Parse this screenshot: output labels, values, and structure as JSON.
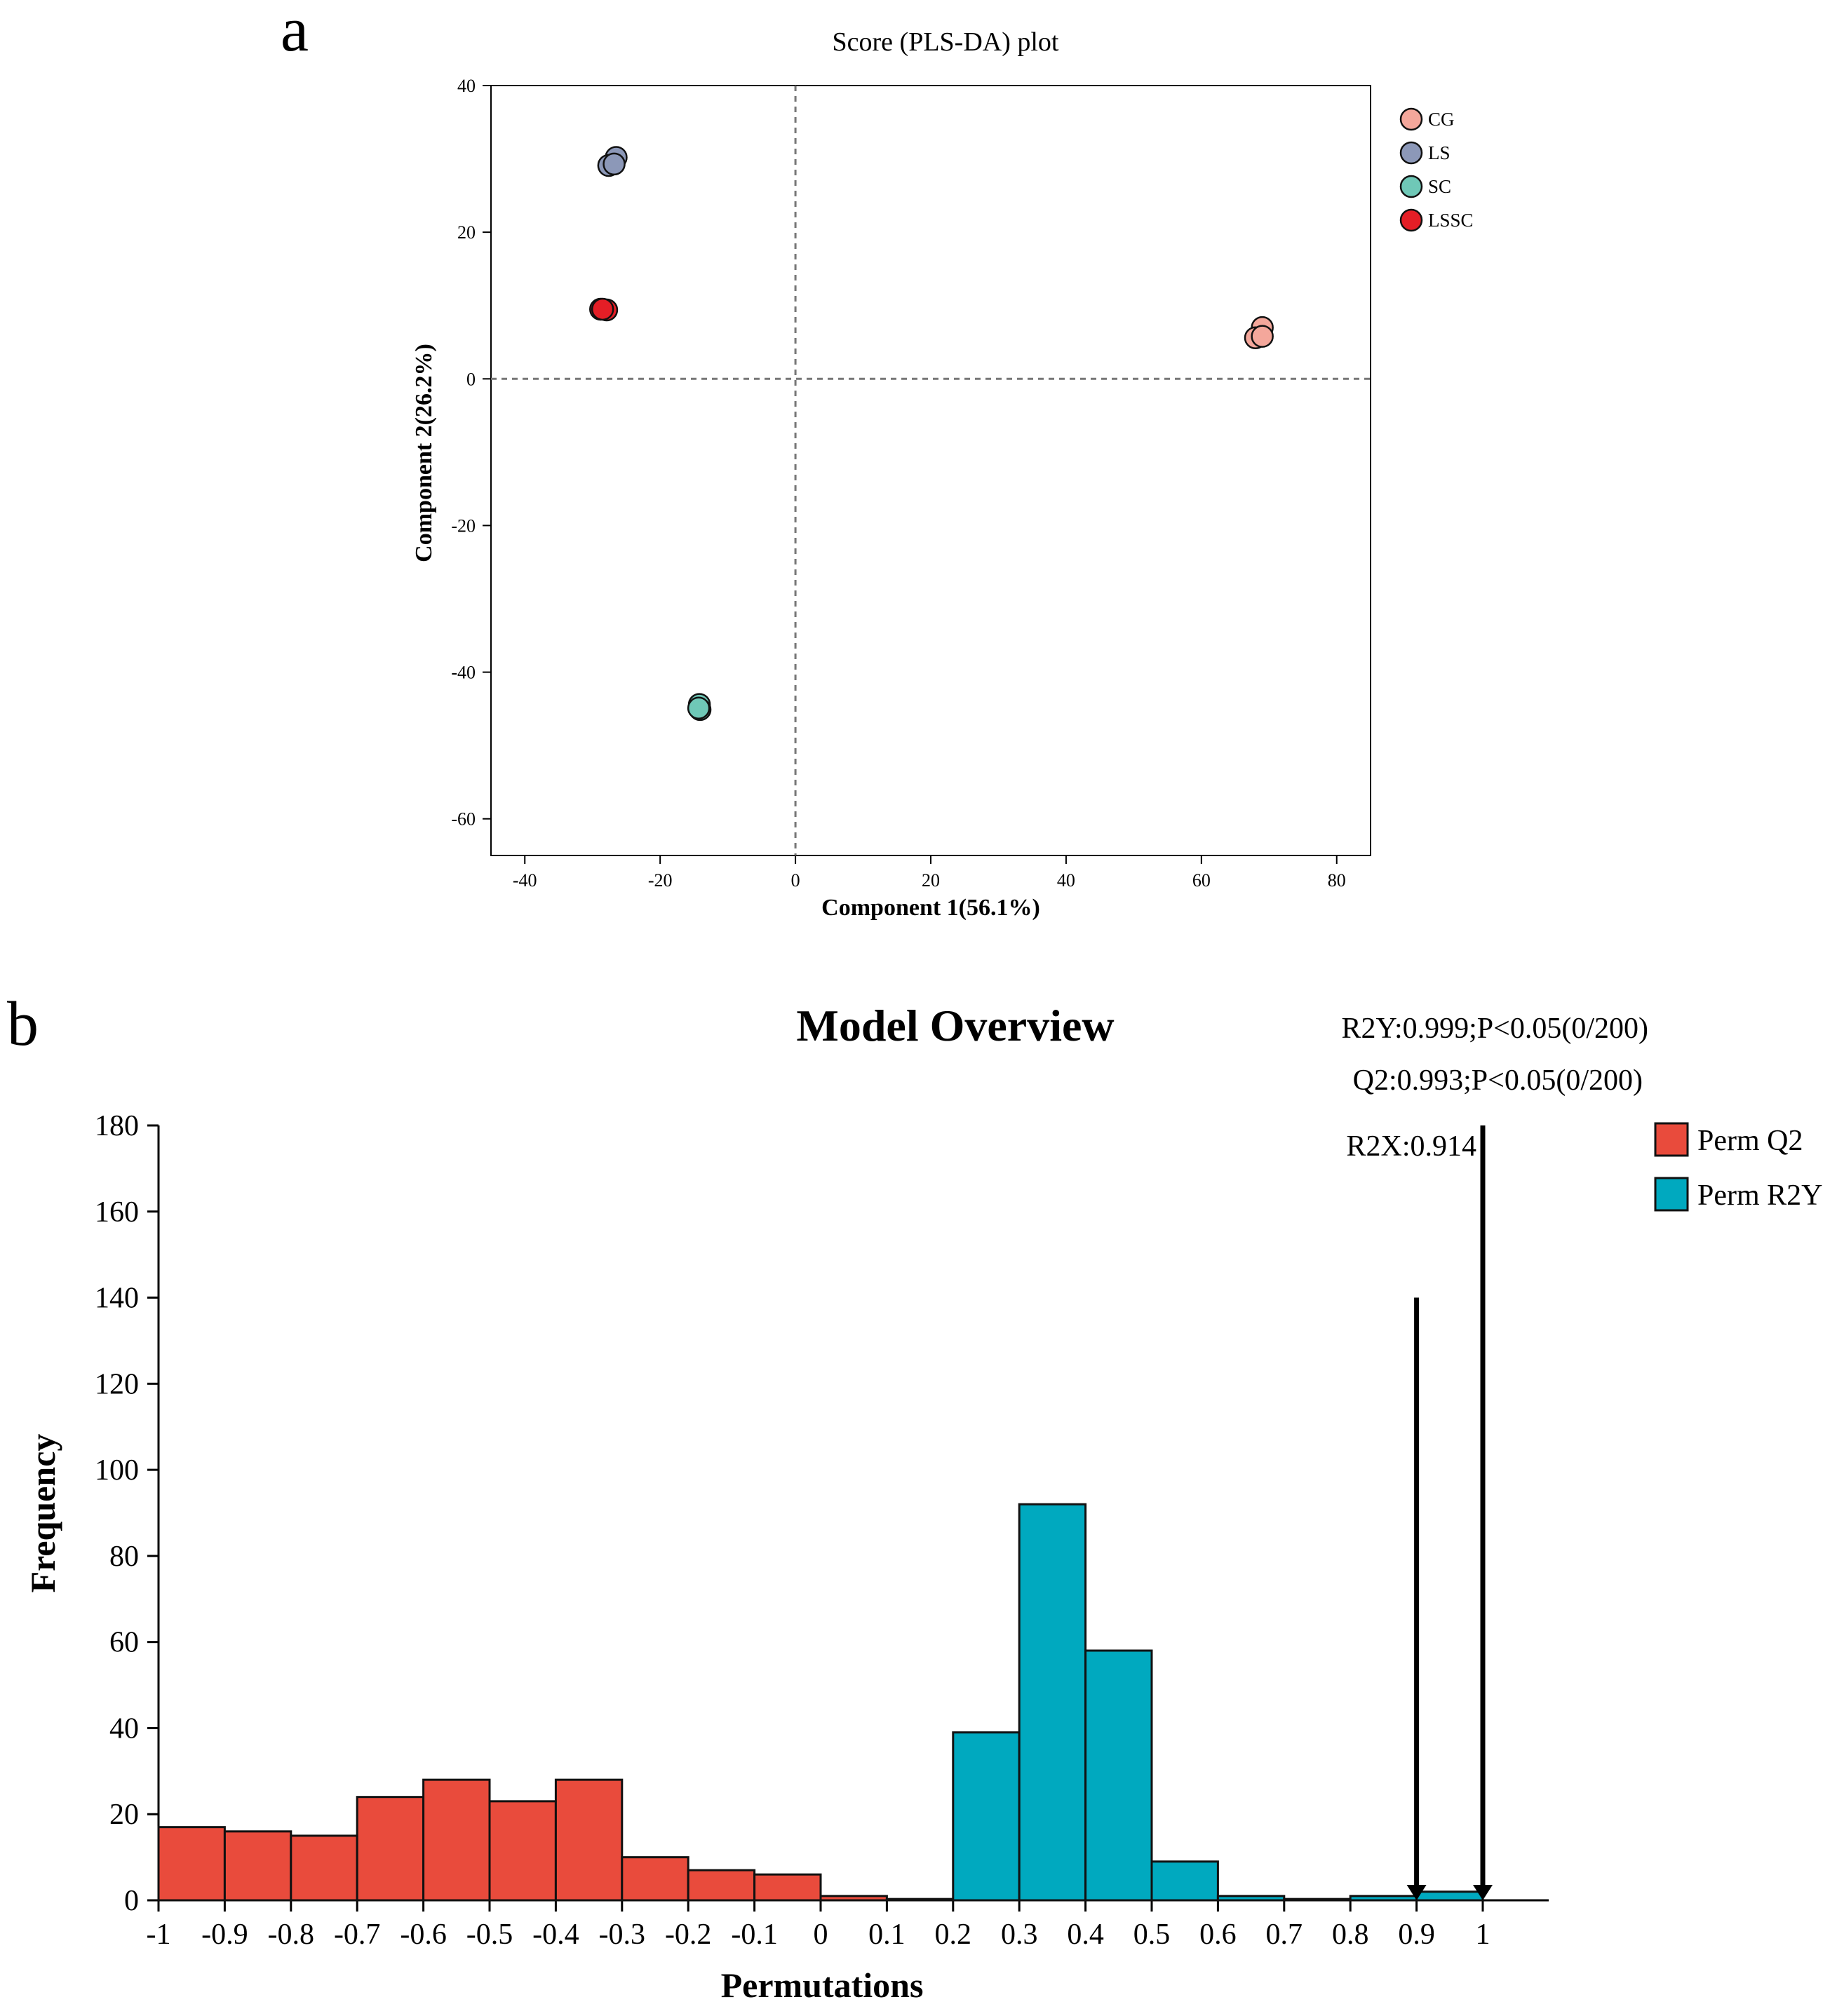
{
  "panel_labels": {
    "a": "a",
    "b": "b"
  },
  "chart_data": [
    {
      "type": "scatter",
      "title": "Score (PLS-DA) plot",
      "xlabel": "Component 1(56.1%)",
      "ylabel": "Component 2(26.2%)",
      "xlim": [
        -45,
        85
      ],
      "ylim": [
        -65,
        40
      ],
      "xticks": [
        -40,
        -20,
        0,
        20,
        40,
        60,
        80
      ],
      "yticks": [
        40,
        20,
        0,
        -20,
        -40,
        -60
      ],
      "reference_lines": {
        "x": 0,
        "y": 0,
        "style": "dashed"
      },
      "series": [
        {
          "name": "CG",
          "color": "#f4a79b",
          "points": [
            [
              69,
              7
            ],
            [
              68,
              5.6
            ],
            [
              69,
              5.8
            ]
          ]
        },
        {
          "name": "LS",
          "color": "#8c98b8",
          "points": [
            [
              -26.5,
              30.2
            ],
            [
              -27.6,
              29.1
            ],
            [
              -26.8,
              29.3
            ]
          ]
        },
        {
          "name": "SC",
          "color": "#6fc8b7",
          "points": [
            [
              -14.2,
              -44.4
            ],
            [
              -14.1,
              -45.1
            ],
            [
              -14.3,
              -44.9
            ]
          ]
        },
        {
          "name": "LSSC",
          "color": "#e41e26",
          "points": [
            [
              -27.9,
              9.4
            ],
            [
              -28.8,
              9.5
            ],
            [
              -28.5,
              9.5
            ]
          ]
        }
      ],
      "legend_position": "top-right"
    },
    {
      "type": "bar",
      "subtype": "histogram",
      "title": "Model Overview",
      "xlabel": "Permutations",
      "ylabel": "Frequency",
      "xlim": [
        -1,
        1.09
      ],
      "ylim": [
        0,
        180
      ],
      "xticks": [
        "-1",
        "-0.9",
        "-0.8",
        "-0.7",
        "-0.6",
        "-0.5",
        "-0.4",
        "-0.3",
        "-0.2",
        "-0.1",
        "0",
        "0.1",
        "0.2",
        "0.3",
        "0.4",
        "0.5",
        "0.6",
        "0.7",
        "0.8",
        "0.9",
        "1"
      ],
      "yticks": [
        0,
        20,
        40,
        60,
        80,
        100,
        120,
        140,
        160,
        180
      ],
      "bin_width": 0.1,
      "series": [
        {
          "name": "Perm Q2",
          "color": "#e94b3c",
          "bins": [
            [
              -1,
              17
            ],
            [
              -0.9,
              16
            ],
            [
              -0.8,
              15
            ],
            [
              -0.7,
              24
            ],
            [
              -0.6,
              28
            ],
            [
              -0.5,
              23
            ],
            [
              -0.4,
              28
            ],
            [
              -0.3,
              10
            ],
            [
              -0.2,
              7
            ],
            [
              -0.1,
              6
            ],
            [
              0,
              1
            ],
            [
              0.1,
              0.3
            ]
          ]
        },
        {
          "name": "Perm R2Y",
          "color": "#00a9bf",
          "bins": [
            [
              0.2,
              39
            ],
            [
              0.3,
              92
            ],
            [
              0.4,
              58
            ],
            [
              0.5,
              9
            ],
            [
              0.6,
              1
            ],
            [
              0.7,
              0.3
            ],
            [
              0.8,
              1
            ],
            [
              0.9,
              2
            ]
          ]
        }
      ],
      "arrows": [
        {
          "x": 0.9,
          "from": 140,
          "to": 0
        },
        {
          "x": 1.0,
          "from": 180,
          "to": 0
        }
      ],
      "annotations": [
        "R2Y:0.999;P<0.05(0/200)",
        "Q2:0.993;P<0.05(0/200)",
        "R2X:0.914"
      ],
      "legend_position": "top-right"
    }
  ]
}
